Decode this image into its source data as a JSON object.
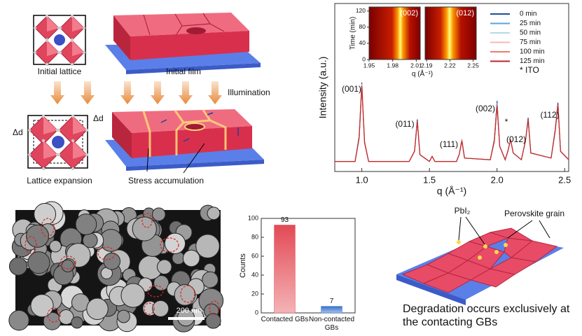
{
  "chart_data": [
    {
      "type": "line",
      "ylabel": "Intensity (a.u.)",
      "xlabel": "q (Å⁻¹)",
      "xlim": [
        0.8,
        2.53
      ],
      "xticks": [
        {
          "value": 1,
          "label": "1.0"
        },
        1.5,
        {
          "value": 2,
          "label": "2.0"
        },
        2.5
      ],
      "ylim": [
        0,
        100
      ],
      "x": [
        0.8,
        0.95,
        0.98,
        1.0,
        1.02,
        1.05,
        1.35,
        1.39,
        1.41,
        1.43,
        1.5,
        1.52,
        1.54,
        1.7,
        1.72,
        1.74,
        1.76,
        1.95,
        1.98,
        2.0,
        2.02,
        2.06,
        2.08,
        2.1,
        2.12,
        2.18,
        2.21,
        2.23,
        2.25,
        2.4,
        2.43,
        2.45,
        2.47,
        2.53
      ],
      "series": [
        {
          "name": "0 min",
          "color": "#1f4e99",
          "values": [
            6,
            6,
            21,
            53,
            18,
            6,
            6,
            12,
            31,
            10,
            6,
            9,
            6,
            6,
            10,
            19,
            8,
            7,
            19,
            42,
            15,
            7,
            12,
            19,
            11,
            7,
            18,
            32,
            11,
            8,
            25,
            41,
            12,
            7
          ]
        },
        {
          "name": "25 min",
          "color": "#5fa3d9",
          "values": [
            6,
            6,
            20,
            52,
            18,
            6,
            6,
            12,
            30,
            10,
            6,
            9,
            6,
            6,
            10,
            19,
            8,
            7,
            18,
            41,
            15,
            7,
            12,
            19,
            11,
            7,
            18,
            31,
            11,
            8,
            24,
            40,
            12,
            7
          ]
        },
        {
          "name": "50 min",
          "color": "#b8d8e8",
          "values": [
            6,
            6,
            20,
            52,
            18,
            6,
            6,
            12,
            30,
            10,
            6,
            9,
            6,
            6,
            10,
            19,
            8,
            7,
            18,
            40,
            15,
            7,
            12,
            19,
            11,
            7,
            18,
            31,
            11,
            8,
            24,
            40,
            12,
            7
          ]
        },
        {
          "name": "75 min",
          "color": "#f4b9b0",
          "values": [
            6,
            6,
            20,
            52,
            18,
            6,
            6,
            12,
            30,
            10,
            6,
            9,
            6,
            6,
            10,
            19,
            8,
            7,
            18,
            40,
            15,
            7,
            12,
            19,
            11,
            7,
            18,
            31,
            11,
            8,
            24,
            40,
            12,
            7
          ]
        },
        {
          "name": "100 min",
          "color": "#ec7d6e",
          "values": [
            6,
            6,
            20,
            51,
            18,
            6,
            6,
            12,
            30,
            10,
            6,
            9,
            6,
            6,
            10,
            19,
            8,
            7,
            18,
            40,
            15,
            7,
            12,
            19,
            11,
            7,
            18,
            31,
            11,
            8,
            24,
            40,
            12,
            7
          ]
        },
        {
          "name": "125 min",
          "color": "#c0262b",
          "values": [
            6,
            6,
            20,
            51,
            17,
            6,
            6,
            12,
            30,
            10,
            6,
            9,
            6,
            6,
            10,
            18,
            8,
            7,
            18,
            39,
            15,
            7,
            12,
            19,
            11,
            7,
            18,
            31,
            11,
            8,
            24,
            40,
            12,
            7
          ]
        }
      ],
      "annotations": [
        "(001)",
        "(011)",
        "(111)",
        "(002)",
        "(012)",
        "(112)",
        "*",
        "* ITO"
      ]
    },
    {
      "type": "heatmap",
      "title": "(002)",
      "ylabel": "Time (min)",
      "xlabel": "q (Å⁻¹)",
      "xlim": [
        1.95,
        2.015
      ],
      "xticks": [
        1.95,
        1.98,
        2.01
      ],
      "ylim": [
        0,
        130
      ],
      "yticks": [
        0,
        40,
        80,
        120
      ]
    },
    {
      "type": "heatmap",
      "title": "(012)",
      "xlim": [
        2.188,
        2.254
      ],
      "xticks": [
        2.19,
        2.22,
        2.25
      ],
      "ylim": [
        0,
        130
      ]
    },
    {
      "type": "bar",
      "ylabel": "Counts",
      "categories": [
        "Contacted GBs",
        "Non-contacted GBs"
      ],
      "values": [
        93,
        7
      ],
      "colors": [
        "#e35863",
        "#4a80d4"
      ],
      "ylim": [
        0,
        100
      ],
      "yticks": [
        0,
        20,
        40,
        60,
        80,
        100
      ]
    }
  ],
  "schematic": {
    "initial_lattice": "Initial lattice",
    "initial_film": "Initial film",
    "illumination": "Illumination",
    "delta_d": [
      "Δd",
      "Δd"
    ],
    "lattice_expansion": "Lattice expansion",
    "stress_accumulation": "Stress accumulation"
  },
  "sem": {
    "scale_bar": "200 nm"
  },
  "degradation": {
    "pbi2": "PbI₂",
    "grain": "Perovskite grain",
    "caption": "Degradation occurs exclusively at the contacting GBs"
  }
}
